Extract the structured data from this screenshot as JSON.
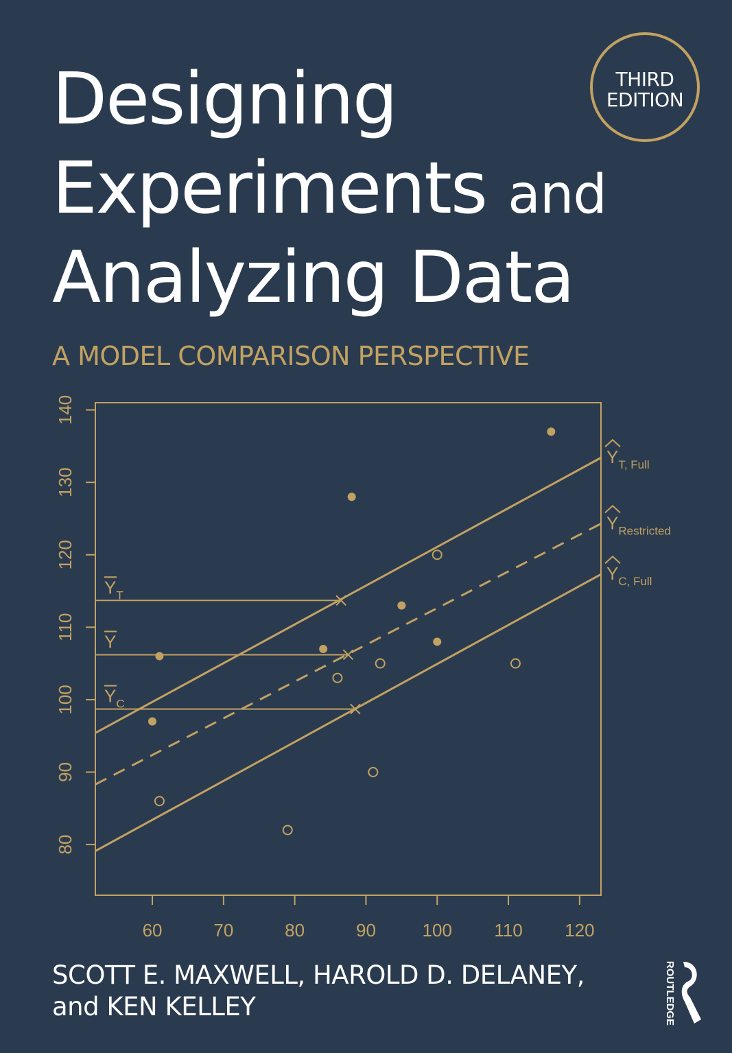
{
  "cover": {
    "title_line1": "Designing",
    "title_line2a": "Experiments",
    "title_line2b": "and",
    "title_line3": "Analyzing Data",
    "subtitle": "A MODEL COMPARISON PERSPECTIVE",
    "edition_line1": "THIRD",
    "edition_line2": "EDITION",
    "authors_line1": "SCOTT E. MAXWELL, HAROLD D. DELANEY,",
    "authors_line2": "and KEN KELLEY",
    "publisher": "ROUTLEDGE"
  },
  "colors": {
    "background": "#2b3b4f",
    "accent": "#c2a262",
    "text": "#ffffff"
  },
  "chart_data": {
    "type": "scatter",
    "xlim": [
      52,
      123
    ],
    "ylim": [
      73,
      141
    ],
    "xticks": [
      60,
      70,
      80,
      90,
      100,
      110,
      120
    ],
    "yticks": [
      80,
      90,
      100,
      110,
      120,
      130,
      140
    ],
    "grid": false,
    "series": [
      {
        "marker": "filled-circle",
        "x": [
          60,
          61,
          84,
          88,
          95,
          100,
          116
        ],
        "y": [
          97,
          106,
          107,
          128,
          113,
          108,
          137
        ]
      },
      {
        "marker": "open-circle",
        "x": [
          61,
          79,
          86,
          91,
          92,
          100,
          111
        ],
        "y": [
          86,
          82,
          103,
          90,
          105,
          120,
          105
        ]
      }
    ],
    "lines": [
      {
        "style": "solid",
        "x": [
          52,
          123
        ],
        "y": [
          95.4,
          133.4
        ],
        "label_base": "Y",
        "label_sub": "T, Full"
      },
      {
        "style": "dashed",
        "x": [
          52,
          123
        ],
        "y": [
          88.3,
          124.3
        ],
        "label_base": "Y",
        "label_sub": "Restricted"
      },
      {
        "style": "solid",
        "x": [
          52,
          123
        ],
        "y": [
          79.1,
          117.3
        ],
        "label_base": "Y",
        "label_sub": "C, Full"
      }
    ],
    "hlines": [
      {
        "y": 113.7,
        "x_end": 86.5,
        "label_base": "Y",
        "label_sub": "T"
      },
      {
        "y": 106.2,
        "x_end": 87.5,
        "label_base": "Y",
        "label_sub": ""
      },
      {
        "y": 98.7,
        "x_end": 88.5,
        "label_base": "Y",
        "label_sub": "C"
      }
    ]
  }
}
